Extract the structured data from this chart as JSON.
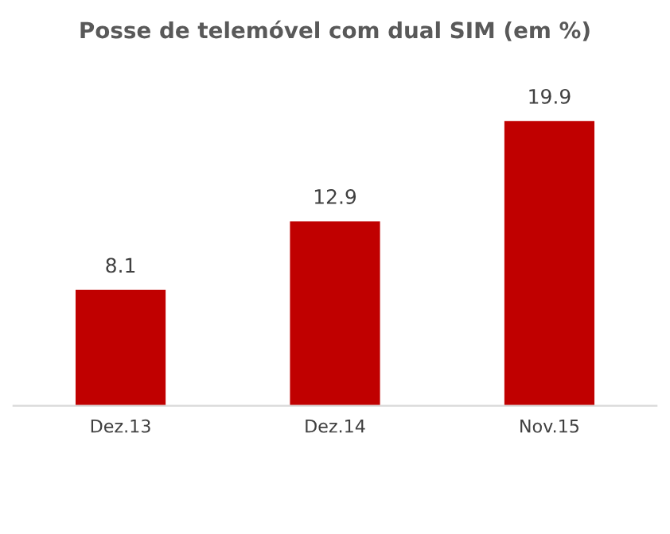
{
  "chart_data": {
    "type": "bar",
    "title": "Posse de telemóvel com dual SIM (em %)",
    "categories": [
      "Dez.13",
      "Dez.14",
      "Nov.15"
    ],
    "values": [
      8.1,
      12.9,
      19.9
    ],
    "color": "#c00000",
    "data_labels": true,
    "grid": false,
    "legend": false
  }
}
